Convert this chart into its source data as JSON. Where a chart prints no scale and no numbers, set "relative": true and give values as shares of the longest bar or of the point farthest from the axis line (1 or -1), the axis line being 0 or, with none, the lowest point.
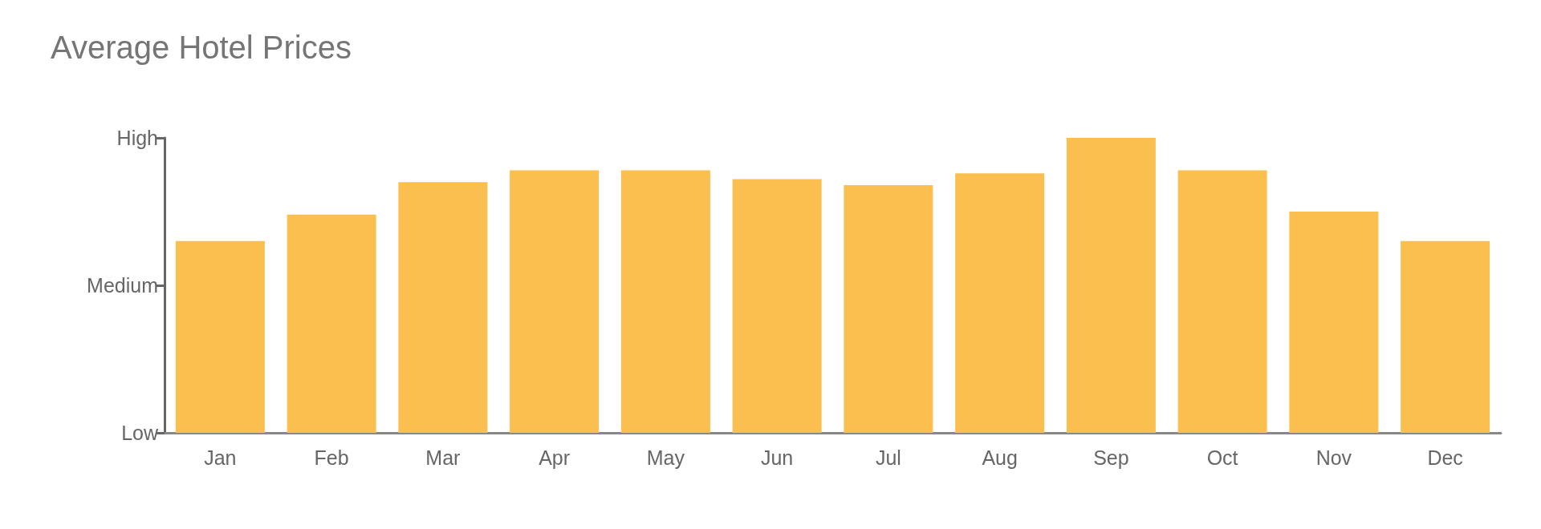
{
  "chart_data": {
    "type": "bar",
    "title": "Average Hotel Prices",
    "categories": [
      "Jan",
      "Feb",
      "Mar",
      "Apr",
      "May",
      "Jun",
      "Jul",
      "Aug",
      "Sep",
      "Oct",
      "Nov",
      "Dec"
    ],
    "values": [
      0.65,
      0.74,
      0.85,
      0.89,
      0.89,
      0.86,
      0.84,
      0.88,
      1,
      0.89,
      0.75,
      0.65
    ],
    "relative": true,
    "color": "#fbbf4f",
    "annotations": [
      "Low",
      "Medium",
      "High"
    ]
  }
}
